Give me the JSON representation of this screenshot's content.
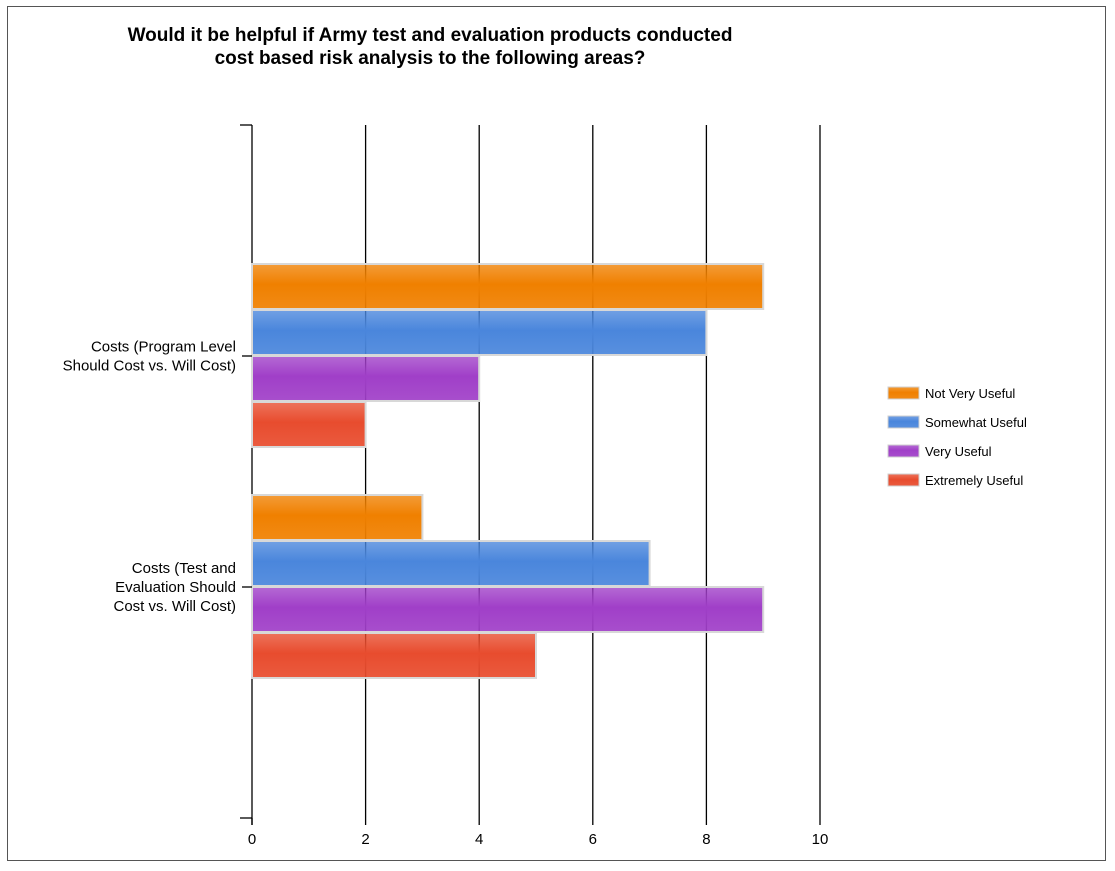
{
  "chart_data": {
    "type": "bar",
    "orientation": "horizontal",
    "title": "Would it be helpful if Army test and evaluation products conducted cost based risk analysis to the following areas?",
    "title_lines": [
      "Would it be helpful if Army test and evaluation products conducted",
      "cost based risk analysis to the following areas?"
    ],
    "categories": [
      "Costs (Program Level Should Cost vs. Will Cost)",
      "Costs (Test and Evaluation Should Cost vs. Will Cost)"
    ],
    "category_label_lines": [
      [
        "Costs (Program Level",
        "Should Cost vs. Will Cost)"
      ],
      [
        "Costs (Test and",
        "Evaluation Should",
        "Cost vs. Will Cost)"
      ]
    ],
    "series": [
      {
        "name": "Not Very Useful",
        "color": "#F08000",
        "values": [
          9,
          3
        ]
      },
      {
        "name": "Somewhat Useful",
        "color": "#4A86DC",
        "values": [
          8,
          7
        ]
      },
      {
        "name": "Very Useful",
        "color": "#A03FC8",
        "values": [
          4,
          9
        ]
      },
      {
        "name": "Extremely Useful",
        "color": "#E84C2E",
        "values": [
          2,
          5
        ]
      }
    ],
    "xlim": [
      0,
      10
    ],
    "xticks": [
      0,
      2,
      4,
      6,
      8,
      10
    ],
    "xlabel": "",
    "ylabel": "",
    "grid": true,
    "legend_position": "right"
  }
}
